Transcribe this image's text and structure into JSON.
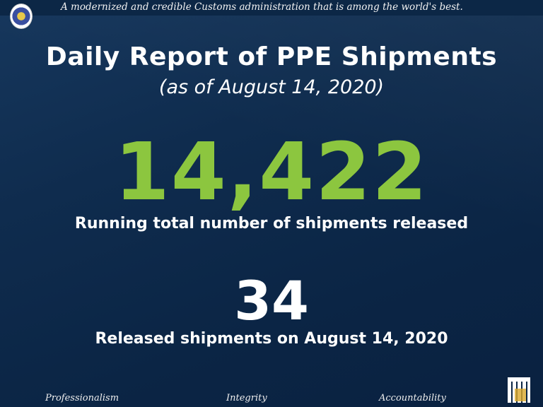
{
  "header": {
    "motto": "A modernized and credible Customs administration that is among the world's best."
  },
  "report": {
    "title": "Daily Report of PPE Shipments",
    "subtitle": "(as of August 14, 2020)",
    "running_total": "14,422",
    "running_total_label": "Running total number of shipments released",
    "daily_count": "34",
    "daily_label": "Released shipments on August 14, 2020"
  },
  "footer": {
    "values": [
      "Professionalism",
      "Integrity",
      "Accountability"
    ]
  },
  "colors": {
    "background": "#0e2a4a",
    "accent": "#8cc63f"
  }
}
